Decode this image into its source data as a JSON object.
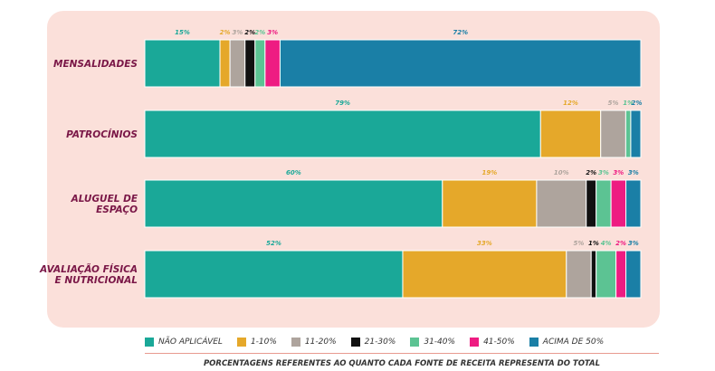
{
  "chart_data": {
    "type": "bar",
    "orientation": "horizontal",
    "stacked": true,
    "categories": [
      "MENSALIDADES",
      "PATROCÍNIOS",
      "ALUGUEL DE ESPAÇO",
      "AVALIAÇÃO FÍSICA E NUTRICIONAL"
    ],
    "category_lines": [
      [
        "MENSALIDADES"
      ],
      [
        "PATROCÍNIOS"
      ],
      [
        "ALUGUEL DE",
        "ESPAÇO"
      ],
      [
        "AVALIAÇÃO FÍSICA",
        "E NUTRICIONAL"
      ]
    ],
    "series": [
      {
        "name": "NÃO APLICÁVEL",
        "color": "#1aa898",
        "label_color": "#1aa898",
        "values": [
          15,
          79,
          60,
          52
        ],
        "labels": [
          "15%",
          "79%",
          "60%",
          "52%"
        ]
      },
      {
        "name": "1-10%",
        "color": "#e5a82a",
        "label_color": "#e5a82a",
        "values": [
          2,
          12,
          19,
          33
        ],
        "labels": [
          "2%",
          "12%",
          "19%",
          "33%"
        ]
      },
      {
        "name": "11-20%",
        "color": "#aea49d",
        "label_color": "#aea49d",
        "values": [
          3,
          5,
          10,
          5
        ],
        "labels": [
          "3%",
          "5%",
          "10%",
          "5%"
        ]
      },
      {
        "name": "21-30%",
        "color": "#111111",
        "label_color": "#111111",
        "values": [
          2,
          0,
          2,
          1
        ],
        "labels": [
          "2%",
          "",
          "2%",
          "1%"
        ]
      },
      {
        "name": "31-40%",
        "color": "#5cc393",
        "label_color": "#5cc393",
        "values": [
          2,
          1,
          3,
          4
        ],
        "labels": [
          "2%",
          "1%",
          "3%",
          "4%"
        ]
      },
      {
        "name": "41-50%",
        "color": "#ee1c82",
        "label_color": "#ee1c82",
        "values": [
          3,
          0,
          3,
          2
        ],
        "labels": [
          "3%",
          "",
          "3%",
          "2%"
        ]
      },
      {
        "name": "ACIMA DE 50%",
        "color": "#1a7fa6",
        "label_color": "#1a7fa6",
        "values": [
          72,
          2,
          3,
          3
        ],
        "labels": [
          "72%",
          "2%",
          "3%",
          "3%"
        ]
      }
    ],
    "footnote": "PORCENTAGENS REFERENTES AO QUANTO CADA FONTE DE RECEITA REPRESENTA DO TOTAL"
  }
}
